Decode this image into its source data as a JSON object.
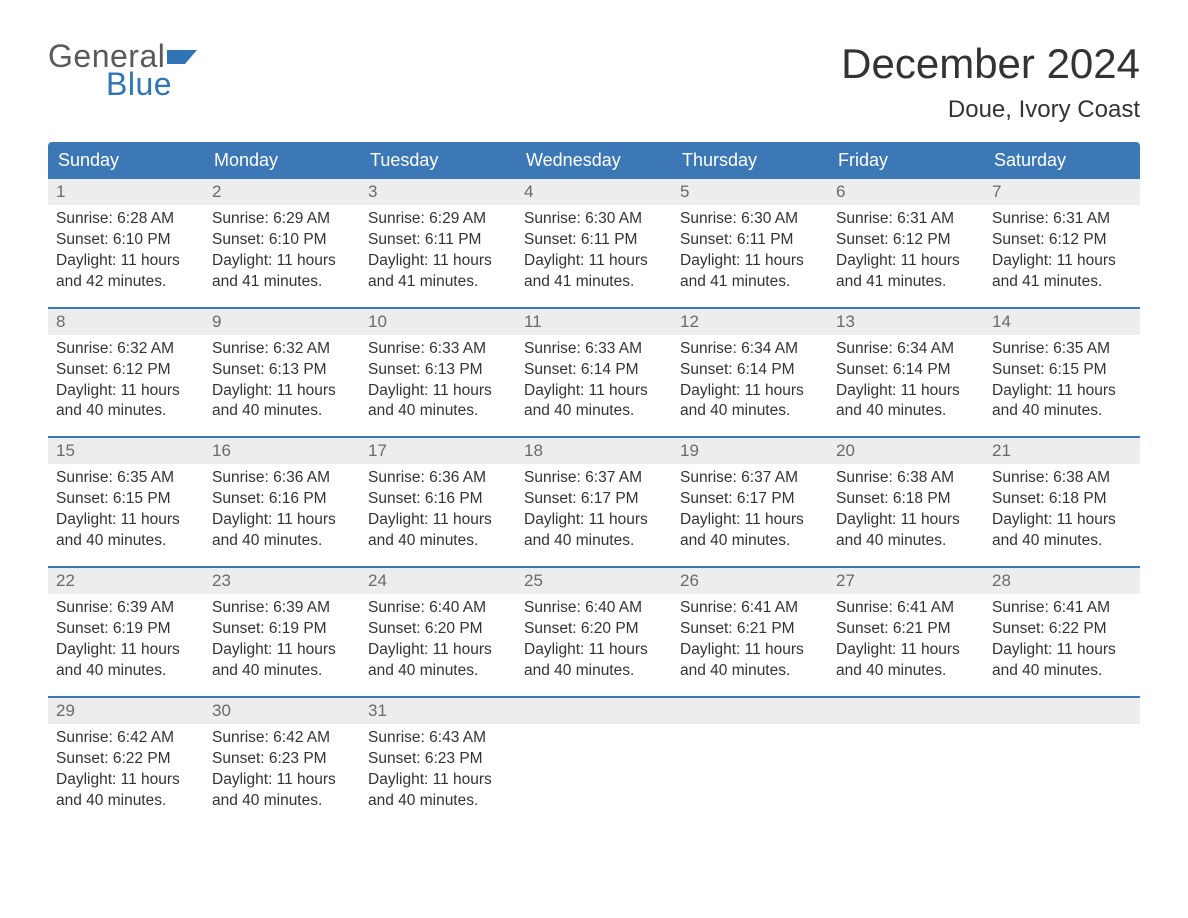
{
  "logo": {
    "text1": "General",
    "text2": "Blue",
    "flag_color": "#2f74b5"
  },
  "header": {
    "month_title": "December 2024",
    "location": "Doue, Ivory Coast"
  },
  "styling": {
    "header_bg": "#3b78b5",
    "header_text": "#ffffff",
    "daynum_bg": "#ededed",
    "daynum_color": "#6a6a6a",
    "body_text": "#333333",
    "week_divider": "#3b78b5",
    "page_bg": "#ffffff",
    "dayname_fontsize": 18,
    "daynum_fontsize": 17,
    "body_fontsize": 15.5,
    "title_fontsize": 42,
    "location_fontsize": 24
  },
  "daynames": [
    "Sunday",
    "Monday",
    "Tuesday",
    "Wednesday",
    "Thursday",
    "Friday",
    "Saturday"
  ],
  "weeks": [
    [
      {
        "n": "1",
        "sunrise": "6:28 AM",
        "sunset": "6:10 PM",
        "daylight": "11 hours and 42 minutes."
      },
      {
        "n": "2",
        "sunrise": "6:29 AM",
        "sunset": "6:10 PM",
        "daylight": "11 hours and 41 minutes."
      },
      {
        "n": "3",
        "sunrise": "6:29 AM",
        "sunset": "6:11 PM",
        "daylight": "11 hours and 41 minutes."
      },
      {
        "n": "4",
        "sunrise": "6:30 AM",
        "sunset": "6:11 PM",
        "daylight": "11 hours and 41 minutes."
      },
      {
        "n": "5",
        "sunrise": "6:30 AM",
        "sunset": "6:11 PM",
        "daylight": "11 hours and 41 minutes."
      },
      {
        "n": "6",
        "sunrise": "6:31 AM",
        "sunset": "6:12 PM",
        "daylight": "11 hours and 41 minutes."
      },
      {
        "n": "7",
        "sunrise": "6:31 AM",
        "sunset": "6:12 PM",
        "daylight": "11 hours and 41 minutes."
      }
    ],
    [
      {
        "n": "8",
        "sunrise": "6:32 AM",
        "sunset": "6:12 PM",
        "daylight": "11 hours and 40 minutes."
      },
      {
        "n": "9",
        "sunrise": "6:32 AM",
        "sunset": "6:13 PM",
        "daylight": "11 hours and 40 minutes."
      },
      {
        "n": "10",
        "sunrise": "6:33 AM",
        "sunset": "6:13 PM",
        "daylight": "11 hours and 40 minutes."
      },
      {
        "n": "11",
        "sunrise": "6:33 AM",
        "sunset": "6:14 PM",
        "daylight": "11 hours and 40 minutes."
      },
      {
        "n": "12",
        "sunrise": "6:34 AM",
        "sunset": "6:14 PM",
        "daylight": "11 hours and 40 minutes."
      },
      {
        "n": "13",
        "sunrise": "6:34 AM",
        "sunset": "6:14 PM",
        "daylight": "11 hours and 40 minutes."
      },
      {
        "n": "14",
        "sunrise": "6:35 AM",
        "sunset": "6:15 PM",
        "daylight": "11 hours and 40 minutes."
      }
    ],
    [
      {
        "n": "15",
        "sunrise": "6:35 AM",
        "sunset": "6:15 PM",
        "daylight": "11 hours and 40 minutes."
      },
      {
        "n": "16",
        "sunrise": "6:36 AM",
        "sunset": "6:16 PM",
        "daylight": "11 hours and 40 minutes."
      },
      {
        "n": "17",
        "sunrise": "6:36 AM",
        "sunset": "6:16 PM",
        "daylight": "11 hours and 40 minutes."
      },
      {
        "n": "18",
        "sunrise": "6:37 AM",
        "sunset": "6:17 PM",
        "daylight": "11 hours and 40 minutes."
      },
      {
        "n": "19",
        "sunrise": "6:37 AM",
        "sunset": "6:17 PM",
        "daylight": "11 hours and 40 minutes."
      },
      {
        "n": "20",
        "sunrise": "6:38 AM",
        "sunset": "6:18 PM",
        "daylight": "11 hours and 40 minutes."
      },
      {
        "n": "21",
        "sunrise": "6:38 AM",
        "sunset": "6:18 PM",
        "daylight": "11 hours and 40 minutes."
      }
    ],
    [
      {
        "n": "22",
        "sunrise": "6:39 AM",
        "sunset": "6:19 PM",
        "daylight": "11 hours and 40 minutes."
      },
      {
        "n": "23",
        "sunrise": "6:39 AM",
        "sunset": "6:19 PM",
        "daylight": "11 hours and 40 minutes."
      },
      {
        "n": "24",
        "sunrise": "6:40 AM",
        "sunset": "6:20 PM",
        "daylight": "11 hours and 40 minutes."
      },
      {
        "n": "25",
        "sunrise": "6:40 AM",
        "sunset": "6:20 PM",
        "daylight": "11 hours and 40 minutes."
      },
      {
        "n": "26",
        "sunrise": "6:41 AM",
        "sunset": "6:21 PM",
        "daylight": "11 hours and 40 minutes."
      },
      {
        "n": "27",
        "sunrise": "6:41 AM",
        "sunset": "6:21 PM",
        "daylight": "11 hours and 40 minutes."
      },
      {
        "n": "28",
        "sunrise": "6:41 AM",
        "sunset": "6:22 PM",
        "daylight": "11 hours and 40 minutes."
      }
    ],
    [
      {
        "n": "29",
        "sunrise": "6:42 AM",
        "sunset": "6:22 PM",
        "daylight": "11 hours and 40 minutes."
      },
      {
        "n": "30",
        "sunrise": "6:42 AM",
        "sunset": "6:23 PM",
        "daylight": "11 hours and 40 minutes."
      },
      {
        "n": "31",
        "sunrise": "6:43 AM",
        "sunset": "6:23 PM",
        "daylight": "11 hours and 40 minutes."
      },
      null,
      null,
      null,
      null
    ]
  ],
  "labels": {
    "sunrise": "Sunrise: ",
    "sunset": "Sunset: ",
    "daylight": "Daylight: "
  }
}
